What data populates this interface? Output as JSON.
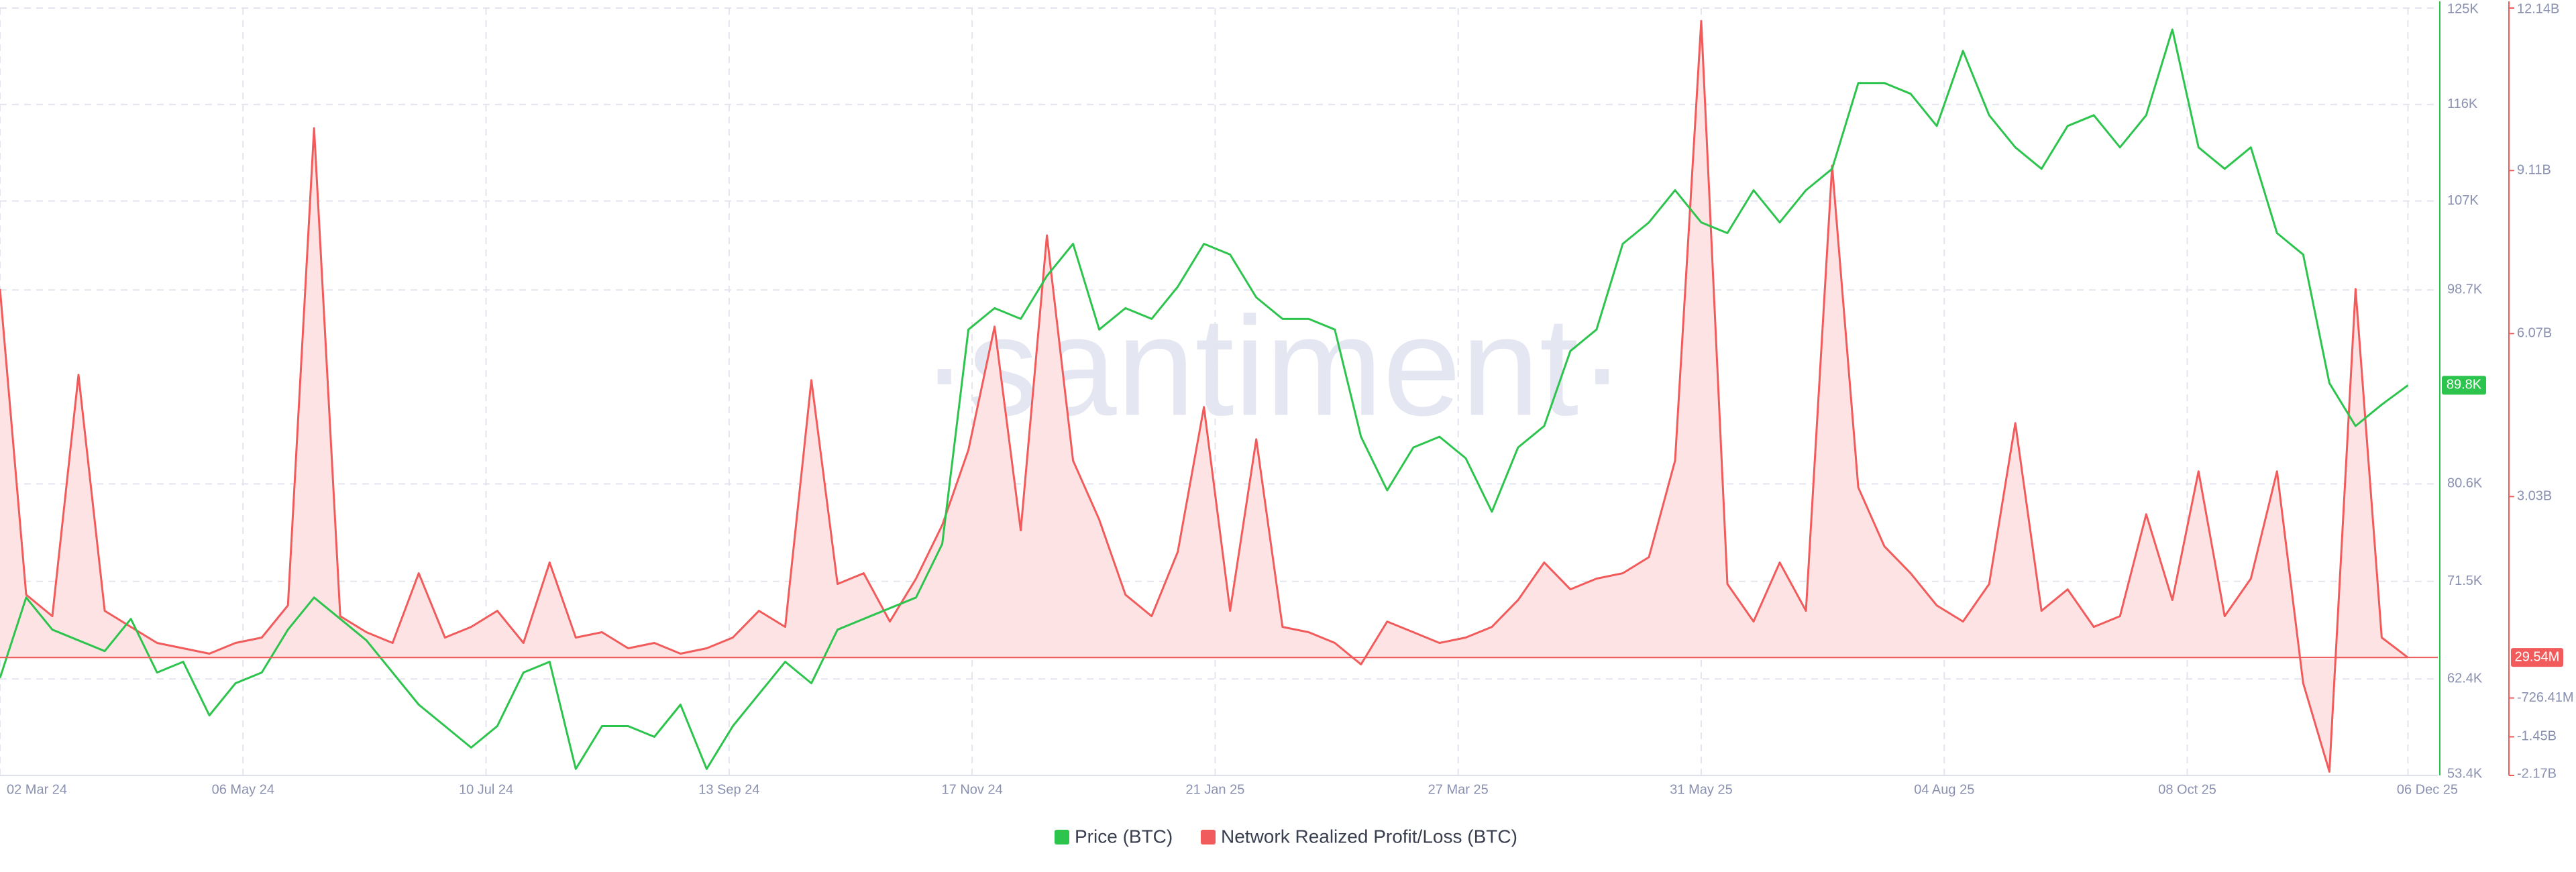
{
  "chart_data": {
    "type": "line",
    "watermark": "·santiment·",
    "x": [
      "2024-03-02",
      "2024-03-09",
      "2024-03-16",
      "2024-03-23",
      "2024-03-30",
      "2024-04-06",
      "2024-04-13",
      "2024-04-20",
      "2024-04-27",
      "2024-05-04",
      "2024-05-11",
      "2024-05-18",
      "2024-05-25",
      "2024-06-01",
      "2024-06-08",
      "2024-06-15",
      "2024-06-22",
      "2024-06-29",
      "2024-07-06",
      "2024-07-13",
      "2024-07-20",
      "2024-07-27",
      "2024-08-03",
      "2024-08-10",
      "2024-08-17",
      "2024-08-24",
      "2024-08-31",
      "2024-09-07",
      "2024-09-14",
      "2024-09-21",
      "2024-09-28",
      "2024-10-05",
      "2024-10-12",
      "2024-10-19",
      "2024-10-26",
      "2024-11-02",
      "2024-11-09",
      "2024-11-16",
      "2024-11-23",
      "2024-11-30",
      "2024-12-07",
      "2024-12-14",
      "2024-12-21",
      "2024-12-28",
      "2025-01-04",
      "2025-01-11",
      "2025-01-18",
      "2025-01-25",
      "2025-02-01",
      "2025-02-08",
      "2025-02-15",
      "2025-02-22",
      "2025-03-01",
      "2025-03-08",
      "2025-03-15",
      "2025-03-22",
      "2025-03-29",
      "2025-04-05",
      "2025-04-12",
      "2025-04-19",
      "2025-04-26",
      "2025-05-03",
      "2025-05-10",
      "2025-05-17",
      "2025-05-24",
      "2025-05-31",
      "2025-06-07",
      "2025-06-14",
      "2025-06-21",
      "2025-06-28",
      "2025-07-05",
      "2025-07-12",
      "2025-07-19",
      "2025-07-26",
      "2025-08-02",
      "2025-08-09",
      "2025-08-16",
      "2025-08-23",
      "2025-08-30",
      "2025-09-06",
      "2025-09-13",
      "2025-09-20",
      "2025-09-27",
      "2025-10-04",
      "2025-10-11",
      "2025-10-18",
      "2025-10-25",
      "2025-11-01",
      "2025-11-08",
      "2025-11-15",
      "2025-11-22",
      "2025-11-29",
      "2025-12-06"
    ],
    "xlim": [
      "2024-03-02",
      "2025-12-14"
    ],
    "xticks": [
      {
        "value": "2024-03-02",
        "label": "02 Mar 24"
      },
      {
        "value": "2024-05-06",
        "label": "06 May 24"
      },
      {
        "value": "2024-07-10",
        "label": "10 Jul 24"
      },
      {
        "value": "2024-09-13",
        "label": "13 Sep 24"
      },
      {
        "value": "2024-11-17",
        "label": "17 Nov 24"
      },
      {
        "value": "2025-01-21",
        "label": "21 Jan 25"
      },
      {
        "value": "2025-03-27",
        "label": "27 Mar 25"
      },
      {
        "value": "2025-05-31",
        "label": "31 May 25"
      },
      {
        "value": "2025-08-04",
        "label": "04 Aug 25"
      },
      {
        "value": "2025-10-08",
        "label": "08 Oct 25"
      },
      {
        "value": "2025-12-06",
        "label": "06 Dec 25"
      }
    ],
    "ylim": [
      53400,
      125000
    ],
    "yticks": [
      {
        "value": 53400,
        "label": "53.4K"
      },
      {
        "value": 62400,
        "label": "62.4K"
      },
      {
        "value": 71500,
        "label": "71.5K"
      },
      {
        "value": 80600,
        "label": "80.6K"
      },
      {
        "value": 98700,
        "label": "98.7K"
      },
      {
        "value": 107000,
        "label": "107K"
      },
      {
        "value": 116000,
        "label": "116K"
      },
      {
        "value": 125000,
        "label": "125K"
      }
    ],
    "y2lim": [
      -2170000000,
      12140000000
    ],
    "y2ticks": [
      {
        "value": -2170000000,
        "label": "-2.17B"
      },
      {
        "value": -1450000000,
        "label": "-1.45B"
      },
      {
        "value": -726410000,
        "label": "-726.41M"
      },
      {
        "value": 3030000000,
        "label": "3.03B"
      },
      {
        "value": 6070000000,
        "label": "6.07B"
      },
      {
        "value": 9110000000,
        "label": "9.11B"
      },
      {
        "value": 12140000000,
        "label": "12.14B"
      }
    ],
    "grid": true,
    "series": [
      {
        "name": "Price (BTC)",
        "color": "#2dc44d",
        "last_label": "89.8K",
        "values": [
          62500,
          70000,
          67000,
          66000,
          65000,
          68000,
          63000,
          64000,
          59000,
          62000,
          63000,
          67000,
          70000,
          68000,
          66000,
          63000,
          60000,
          58000,
          56000,
          58000,
          63000,
          64000,
          54000,
          58000,
          58000,
          57000,
          60000,
          54000,
          58000,
          61000,
          64000,
          62000,
          67000,
          68000,
          69000,
          70000,
          75000,
          95000,
          97000,
          96000,
          100000,
          103000,
          95000,
          97000,
          96000,
          99000,
          103000,
          102000,
          98000,
          96000,
          96000,
          95000,
          85000,
          80000,
          84000,
          85000,
          83000,
          78000,
          84000,
          86000,
          93000,
          95000,
          103000,
          105000,
          108000,
          105000,
          104000,
          108000,
          105000,
          108000,
          110000,
          118000,
          118000,
          117000,
          114000,
          121000,
          115000,
          112000,
          110000,
          114000,
          115000,
          112000,
          115000,
          123000,
          112000,
          110000,
          112000,
          104000,
          102000,
          90000,
          86000,
          88000,
          89800
        ]
      },
      {
        "name": "Network Realized Profit/Loss (BTC)",
        "color": "#f15b5b",
        "area_color": "#fde3e3",
        "axis": "y2",
        "last_label": "29.54M",
        "values": [
          6900000000.0,
          1200000000.0,
          800000000.0,
          5300000000.0,
          900000000.0,
          600000000.0,
          300000000.0,
          200000000.0,
          100000000.0,
          300000000.0,
          400000000.0,
          1000000000.0,
          9900000000.0,
          800000000.0,
          500000000.0,
          300000000.0,
          1600000000.0,
          400000000.0,
          600000000.0,
          900000000.0,
          300000000.0,
          1800000000.0,
          400000000.0,
          500000000.0,
          200000000.0,
          300000000.0,
          100000000.0,
          200000000.0,
          400000000.0,
          900000000.0,
          600000000.0,
          5200000000.0,
          1400000000.0,
          1600000000.0,
          700000000.0,
          1500000000.0,
          2500000000.0,
          3900000000.0,
          6200000000.0,
          2400000000.0,
          7900000000.0,
          3700000000.0,
          2600000000.0,
          1200000000.0,
          800000000.0,
          2000000000.0,
          4700000000.0,
          900000000.0,
          4100000000.0,
          600000000.0,
          500000000.0,
          300000000.0,
          -100000000.0,
          700000000.0,
          500000000.0,
          300000000.0,
          400000000.0,
          600000000.0,
          1100000000.0,
          1800000000.0,
          1300000000.0,
          1500000000.0,
          1600000000.0,
          1900000000.0,
          3700000000.0,
          11900000000.0,
          1400000000.0,
          700000000.0,
          1800000000.0,
          900000000.0,
          9200000000.0,
          3200000000.0,
          2100000000.0,
          1600000000.0,
          1000000000.0,
          700000000.0,
          1400000000.0,
          4400000000.0,
          900000000.0,
          1300000000.0,
          600000000.0,
          800000000.0,
          2700000000.0,
          1100000000.0,
          3500000000.0,
          800000000.0,
          1500000000.0,
          3500000000.0,
          -450000000.0,
          -2100000000.0,
          6900000000.0,
          400000000.0,
          29540000
        ]
      }
    ]
  }
}
